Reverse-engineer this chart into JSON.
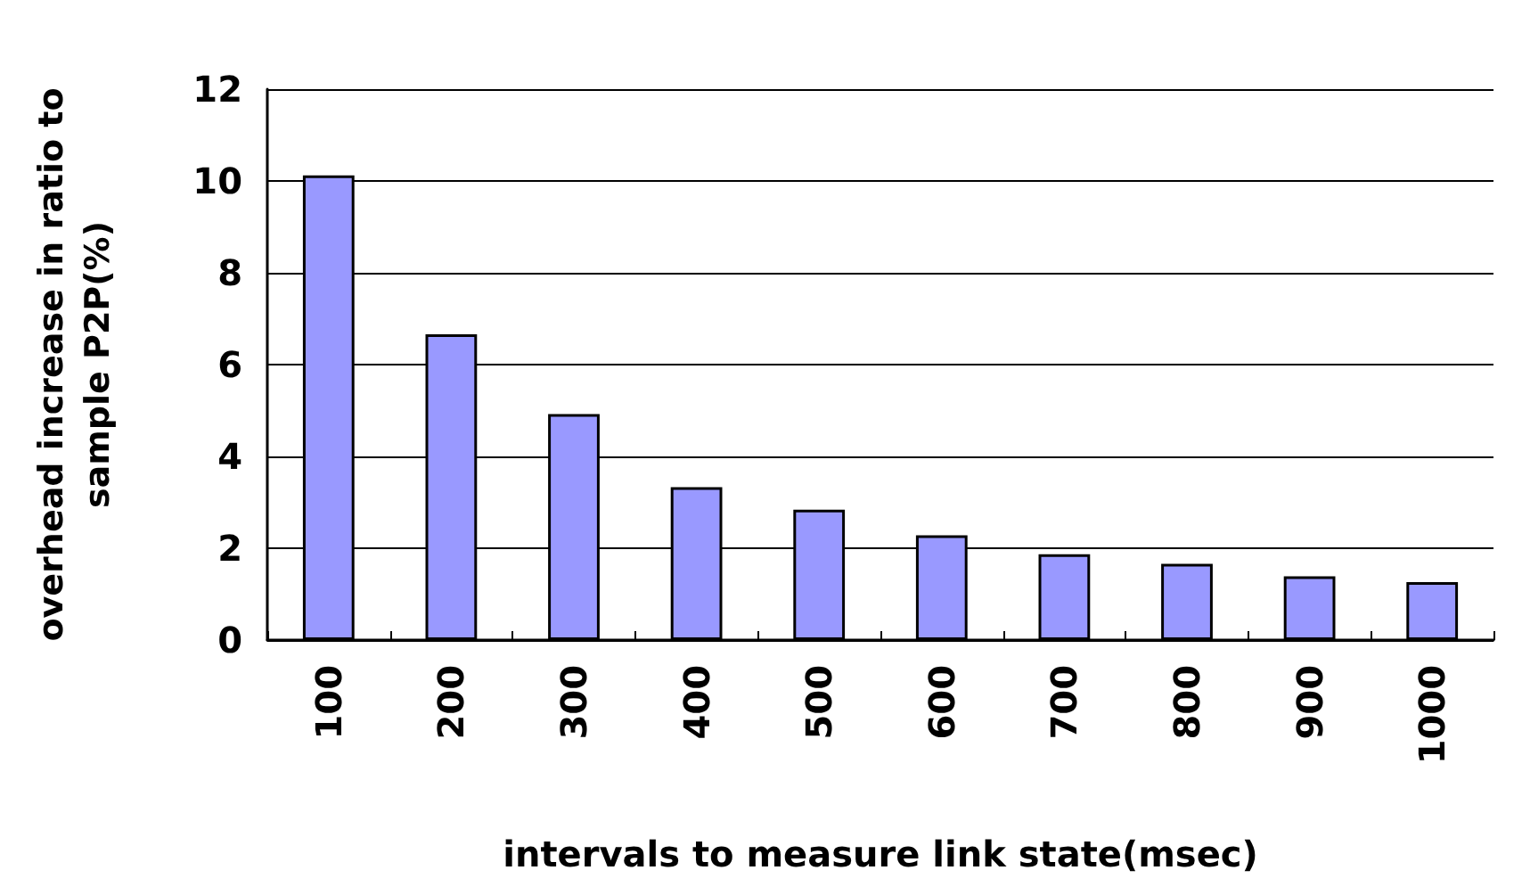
{
  "chart_data": {
    "type": "bar",
    "xlabel": "intervals to measure link state(msec)",
    "ylabel": "overhead increase in ratio to\nsample P2P(%)",
    "categories": [
      "100",
      "200",
      "300",
      "400",
      "500",
      "600",
      "700",
      "800",
      "900",
      "1000"
    ],
    "values": [
      10.12,
      6.66,
      4.92,
      3.33,
      2.84,
      2.28,
      1.87,
      1.66,
      1.39,
      1.26
    ],
    "color": "#9999ff",
    "ylim": [
      0,
      12
    ],
    "yticks": [
      0,
      2,
      4,
      6,
      8,
      10,
      12
    ],
    "grid": "y"
  }
}
